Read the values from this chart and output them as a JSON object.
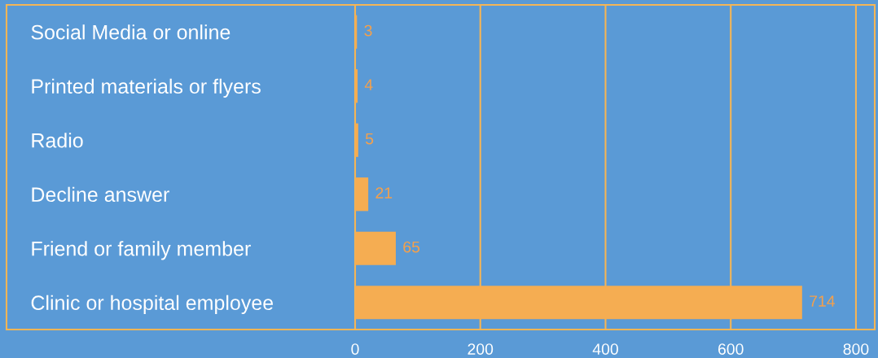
{
  "chart_data": {
    "type": "bar",
    "orientation": "horizontal",
    "categories": [
      "Social Media or online",
      "Printed materials or flyers",
      "Radio",
      "Decline answer",
      "Friend or family member",
      "Clinic or hospital employee"
    ],
    "values": [
      3,
      4,
      5,
      21,
      65,
      714
    ],
    "color": "#f5ad52",
    "xlim": [
      0,
      830
    ],
    "xticks": [
      0,
      200,
      400,
      600,
      800
    ],
    "grid": "x",
    "data_labels": true
  }
}
